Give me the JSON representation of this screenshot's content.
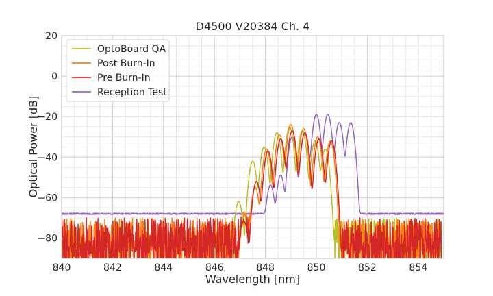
{
  "chart_data": {
    "type": "line",
    "title": "D4500 V20384 Ch. 4",
    "xlabel": "Wavelength [nm]",
    "ylabel": "Optical Power [dB]",
    "xlim": [
      840,
      855
    ],
    "ylim": [
      -90,
      20
    ],
    "xticks": [
      840,
      842,
      844,
      846,
      848,
      850,
      852,
      854
    ],
    "yticks": [
      20,
      0,
      -20,
      -40,
      -60,
      -80
    ],
    "x_tick_labels": [
      "840",
      "842",
      "844",
      "846",
      "848",
      "850",
      "852",
      "854"
    ],
    "y_tick_labels": [
      "20",
      "0",
      "−20",
      "−40",
      "−60",
      "−80"
    ],
    "grid": true,
    "legend_position": "top-left",
    "series": [
      {
        "name": "OptoBoard QA",
        "color": "#bcbd22",
        "noise_floor_range": [
          846.6,
          854.9
        ],
        "peaks": [
          {
            "x": 846.95,
            "y": -62
          },
          {
            "x": 847.5,
            "y": -42
          },
          {
            "x": 847.95,
            "y": -35
          },
          {
            "x": 848.45,
            "y": -28
          },
          {
            "x": 848.95,
            "y": -25
          },
          {
            "x": 849.45,
            "y": -27
          },
          {
            "x": 849.95,
            "y": -32
          },
          {
            "x": 850.35,
            "y": -36
          }
        ]
      },
      {
        "name": "Post Burn-In",
        "color": "#ff7f0e",
        "noise_floor_range": [
          840.0,
          854.9
        ],
        "peaks": [
          {
            "x": 847.2,
            "y": -69
          },
          {
            "x": 847.6,
            "y": -55
          },
          {
            "x": 848.05,
            "y": -36
          },
          {
            "x": 848.55,
            "y": -29
          },
          {
            "x": 849.0,
            "y": -24
          },
          {
            "x": 849.5,
            "y": -26
          },
          {
            "x": 850.05,
            "y": -30
          },
          {
            "x": 850.55,
            "y": -32
          }
        ]
      },
      {
        "name": "Pre Burn-In",
        "color": "#d62728",
        "noise_floor_range": [
          840.0,
          854.9
        ],
        "peaks": [
          {
            "x": 847.15,
            "y": -72
          },
          {
            "x": 847.65,
            "y": -52
          },
          {
            "x": 848.1,
            "y": -37
          },
          {
            "x": 848.6,
            "y": -31
          },
          {
            "x": 849.05,
            "y": -27
          },
          {
            "x": 849.55,
            "y": -28
          },
          {
            "x": 850.1,
            "y": -31
          },
          {
            "x": 850.6,
            "y": -32
          }
        ]
      },
      {
        "name": "Reception Test",
        "color": "#9467bd",
        "baseline": -68,
        "peaks": [
          {
            "x": 848.2,
            "y": -54
          },
          {
            "x": 848.6,
            "y": -49
          },
          {
            "x": 849.05,
            "y": -30
          },
          {
            "x": 849.55,
            "y": -28
          },
          {
            "x": 850.0,
            "y": -19
          },
          {
            "x": 850.45,
            "y": -19
          },
          {
            "x": 850.9,
            "y": -23
          },
          {
            "x": 851.35,
            "y": -23
          }
        ]
      }
    ]
  }
}
